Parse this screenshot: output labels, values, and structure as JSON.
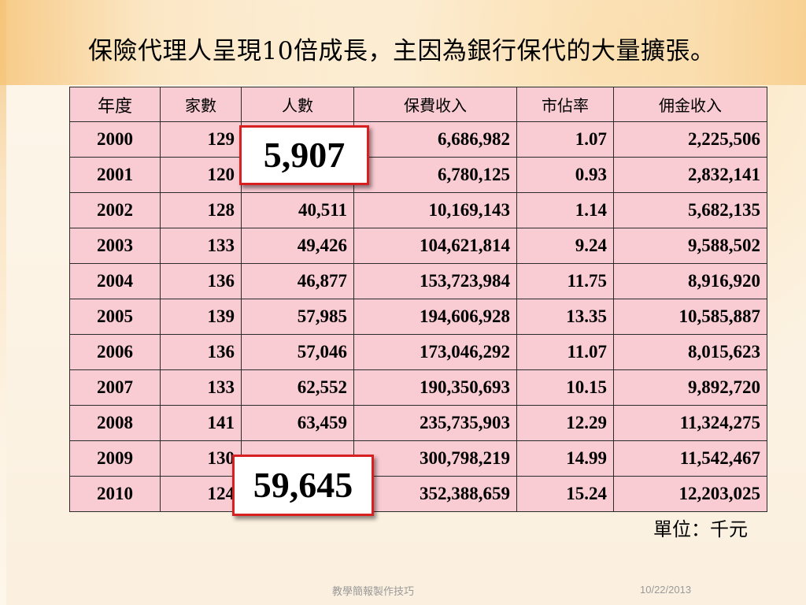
{
  "title": "保險代理人呈現10倍成長，主因為銀行保代的大量擴張。",
  "table": {
    "headers": [
      "年度",
      "家數",
      "人數",
      "保費收入",
      "市佔率",
      "佣金收入"
    ],
    "rows": [
      [
        "2000",
        "129",
        "",
        "6,686,982",
        "1.07",
        "2,225,506"
      ],
      [
        "2001",
        "120",
        "",
        "6,780,125",
        "0.93",
        "2,832,141"
      ],
      [
        "2002",
        "128",
        "40,511",
        "10,169,143",
        "1.14",
        "5,682,135"
      ],
      [
        "2003",
        "133",
        "49,426",
        "104,621,814",
        "9.24",
        "9,588,502"
      ],
      [
        "2004",
        "136",
        "46,877",
        "153,723,984",
        "11.75",
        "8,916,920"
      ],
      [
        "2005",
        "139",
        "57,985",
        "194,606,928",
        "13.35",
        "10,585,887"
      ],
      [
        "2006",
        "136",
        "57,046",
        "173,046,292",
        "11.07",
        "8,015,623"
      ],
      [
        "2007",
        "133",
        "62,552",
        "190,350,693",
        "10.15",
        "9,892,720"
      ],
      [
        "2008",
        "141",
        "63,459",
        "235,735,903",
        "12.29",
        "11,324,275"
      ],
      [
        "2009",
        "130",
        "",
        "300,798,219",
        "14.99",
        "11,542,467"
      ],
      [
        "2010",
        "124",
        "",
        "352,388,659",
        "15.24",
        "12,203,025"
      ]
    ]
  },
  "callouts": {
    "top": "5,907",
    "bottom": "59,645"
  },
  "unit_note": "單位：千元",
  "footer": {
    "center": "教學簡報製作技巧",
    "date": "10/22/2013"
  },
  "colors": {
    "table_bg": "#f9cbd2",
    "callout_border": "#d82020"
  }
}
